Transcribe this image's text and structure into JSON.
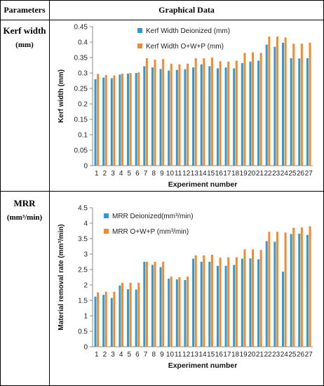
{
  "table": {
    "header_params": "Parameters",
    "header_graph": "Graphical Data",
    "rows": [
      {
        "name": "Kerf width",
        "unit": "(mm)"
      },
      {
        "name": "MRR",
        "unit": "(mm³/min)"
      }
    ]
  },
  "colors": {
    "series1": "#2E9AD4",
    "series2": "#F28A2E"
  },
  "chart_data": [
    {
      "type": "bar",
      "categories": [
        "1",
        "2",
        "3",
        "4",
        "5",
        "6",
        "7",
        "8",
        "9",
        "10",
        "11",
        "12",
        "13",
        "14",
        "15",
        "16",
        "17",
        "18",
        "19",
        "20",
        "21",
        "22",
        "23",
        "24",
        "25",
        "26",
        "27"
      ],
      "series": [
        {
          "name": "Kerf Width Deionized  (mm)",
          "values": [
            0.28,
            0.285,
            0.283,
            0.295,
            0.298,
            0.3,
            0.322,
            0.318,
            0.313,
            0.308,
            0.31,
            0.312,
            0.318,
            0.328,
            0.322,
            0.315,
            0.318,
            0.315,
            0.332,
            0.337,
            0.34,
            0.392,
            0.385,
            0.398,
            0.348,
            0.347,
            0.348
          ]
        },
        {
          "name": "Kerf Width O+W+P (mm)",
          "values": [
            0.297,
            0.293,
            0.292,
            0.298,
            0.3,
            0.302,
            0.348,
            0.343,
            0.345,
            0.33,
            0.328,
            0.33,
            0.348,
            0.348,
            0.35,
            0.338,
            0.337,
            0.34,
            0.365,
            0.367,
            0.365,
            0.418,
            0.418,
            0.415,
            0.395,
            0.395,
            0.398
          ]
        }
      ],
      "ylabel": "Kerf width (mm)",
      "xlabel": "Experiment number",
      "ylim": [
        0,
        0.45
      ],
      "yticks": [
        "0",
        "0.05",
        "0.1",
        "0.15",
        "0.2",
        "0.25",
        "0.3",
        "0.35",
        "0.4",
        "0.45"
      ],
      "grid": false,
      "legend": "top-right"
    },
    {
      "type": "bar",
      "categories": [
        "1",
        "2",
        "3",
        "4",
        "5",
        "6",
        "7",
        "8",
        "9",
        "10",
        "11",
        "12",
        "13",
        "14",
        "15",
        "16",
        "17",
        "18",
        "19",
        "20",
        "21",
        "22",
        "23",
        "24",
        "25",
        "26",
        "27"
      ],
      "series": [
        {
          "name": "MRR Deionized(mm³/min)",
          "values": [
            1.62,
            1.68,
            1.58,
            1.98,
            1.86,
            1.85,
            2.75,
            2.65,
            2.58,
            2.2,
            2.18,
            2.16,
            2.85,
            2.75,
            2.75,
            2.62,
            2.62,
            2.65,
            2.85,
            2.86,
            2.83,
            3.42,
            3.4,
            2.43,
            3.65,
            3.66,
            3.62
          ]
        },
        {
          "name": "MRR O+W+P (mm³/min)",
          "values": [
            1.76,
            1.78,
            1.78,
            2.07,
            2.07,
            2.07,
            2.75,
            2.75,
            2.75,
            2.27,
            2.25,
            2.27,
            2.96,
            2.96,
            2.98,
            2.88,
            2.9,
            2.9,
            3.15,
            3.15,
            3.13,
            3.72,
            3.72,
            3.7,
            3.85,
            3.86,
            3.9
          ]
        }
      ],
      "ylabel": "Material removal rate (mm³/min)",
      "xlabel": "Experiment number",
      "ylim": [
        0,
        4.5
      ],
      "yticks": [
        "0",
        "0.5",
        "1",
        "1.5",
        "2",
        "2.5",
        "3",
        "3.5",
        "4",
        "4.5"
      ],
      "grid": false,
      "legend": "top-left"
    }
  ]
}
